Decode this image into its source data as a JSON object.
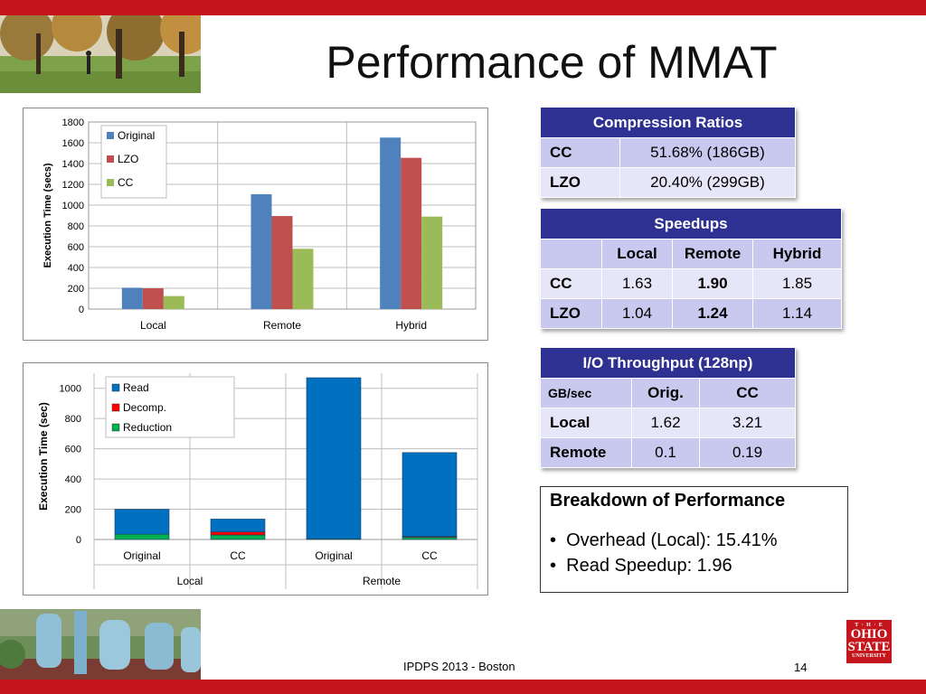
{
  "title": "Performance of MMAT",
  "footer": "IPDPS 2013 - Boston",
  "page_number": "14",
  "logo": {
    "line1": "T · H · E",
    "line2": "OHIO",
    "line3": "STATE",
    "line4": "UNIVERSITY",
    "color": "#c4161c"
  },
  "colors": {
    "accent": "#c4161c",
    "table_header": "#2e3192"
  },
  "chart_data": [
    {
      "type": "bar",
      "ylabel": "Execution Time (secs)",
      "categories": [
        "Local",
        "Remote",
        "Hybrid"
      ],
      "ylim": [
        0,
        1800
      ],
      "yticks": [
        "0",
        "200",
        "400",
        "600",
        "800",
        "1000",
        "1200",
        "1400",
        "1600",
        "1800"
      ],
      "grid": true,
      "legend_position": "top-left",
      "series": [
        {
          "name": "Original",
          "color": "#4f81bd",
          "values": [
            205,
            1105,
            1650
          ]
        },
        {
          "name": "LZO",
          "color": "#c0504d",
          "values": [
            200,
            895,
            1455
          ]
        },
        {
          "name": "CC",
          "color": "#9bbb59",
          "values": [
            125,
            580,
            890
          ]
        }
      ]
    },
    {
      "type": "bar",
      "stacked": true,
      "ylabel": "Execution Time (sec)",
      "categories": [
        "Original",
        "CC",
        "Original",
        "CC"
      ],
      "groups": [
        "Local",
        "Remote"
      ],
      "ylim": [
        0,
        1100
      ],
      "yticks": [
        "0",
        "200",
        "400",
        "600",
        "800",
        "1000"
      ],
      "grid": true,
      "legend_position": "top-left",
      "series": [
        {
          "name": "Read",
          "color": "#0070c0",
          "values": [
            165,
            85,
            1065,
            555
          ]
        },
        {
          "name": "Decomp.",
          "color": "#ff0000",
          "values": [
            0,
            20,
            0,
            5
          ]
        },
        {
          "name": "Reduction",
          "color": "#00b050",
          "values": [
            35,
            30,
            5,
            15
          ]
        }
      ]
    }
  ],
  "compression": {
    "header": "Compression Ratios",
    "rows": [
      {
        "label": "CC",
        "value": "51.68%  (186GB)"
      },
      {
        "label": "LZO",
        "value": "20.40%  (299GB)"
      }
    ]
  },
  "speedups": {
    "header": "Speedups",
    "columns": [
      "",
      "Local",
      "Remote",
      "Hybrid"
    ],
    "rows": [
      {
        "label": "CC",
        "local": "1.63",
        "remote": "1.90",
        "hybrid": "1.85"
      },
      {
        "label": "LZO",
        "local": "1.04",
        "remote": "1.24",
        "hybrid": "1.14"
      }
    ]
  },
  "throughput": {
    "header": "I/O Throughput (128np)",
    "corner": "GB/sec",
    "columns": [
      "Orig.",
      "CC"
    ],
    "rows": [
      {
        "label": "Local",
        "orig": "1.62",
        "cc": "3.21"
      },
      {
        "label": "Remote",
        "orig": "0.1",
        "cc": "0.19"
      }
    ]
  },
  "breakdown": {
    "title": "Breakdown of Performance",
    "items": [
      "Overhead (Local): 15.41%",
      "Read Speedup: 1.96"
    ]
  }
}
